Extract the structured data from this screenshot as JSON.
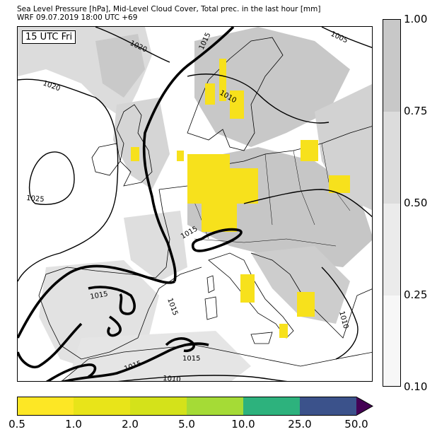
{
  "title": {
    "line1": "Sea Level Pressure [hPa], Mid-Level Cloud Cover, Total prec. in the last hour [mm]",
    "line2": "WRF 09.07.2019 18:00 UTC +69"
  },
  "map": {
    "time_label": "15 UTC Fri",
    "region": "Europe",
    "isobar_labels": [
      {
        "id": "1020-nw",
        "text": "1020"
      },
      {
        "id": "1020-w",
        "text": "1020"
      },
      {
        "id": "1025",
        "text": "1025"
      },
      {
        "id": "1015-n",
        "text": "1015"
      },
      {
        "id": "1010-scand",
        "text": "1010"
      },
      {
        "id": "1005",
        "text": "1005"
      },
      {
        "id": "1015-alps",
        "text": "1015"
      },
      {
        "id": "1015-spain",
        "text": "1015"
      },
      {
        "id": "1015-med",
        "text": "1015"
      },
      {
        "id": "1015-africa",
        "text": "1015"
      },
      {
        "id": "1015-algeria",
        "text": "1015"
      },
      {
        "id": "1010-africa",
        "text": "1010"
      },
      {
        "id": "1010-east",
        "text": "1010"
      }
    ],
    "colors": {
      "land_outline": "#000000",
      "cloud_light": "#e4e4e4",
      "cloud_mid": "#cfcfcf",
      "cloud_dark": "#bdbdbd",
      "precip": "#f7e11c"
    }
  },
  "cloud_legend": {
    "ticks": [
      "1.00",
      "0.75",
      "0.50",
      "0.25",
      "0.10"
    ],
    "colors": [
      "#c8c8c8",
      "#dcdcdc",
      "#ebebeb",
      "#f7f7f7"
    ]
  },
  "precip_legend": {
    "ticks": [
      "0.5",
      "1.0",
      "2.0",
      "5.0",
      "10.0",
      "25.0",
      "50.0"
    ],
    "colors": [
      "#fde725",
      "#e8e419",
      "#d4e21a",
      "#a5db36",
      "#2db27d",
      "#3b528b",
      "#440154"
    ]
  }
}
